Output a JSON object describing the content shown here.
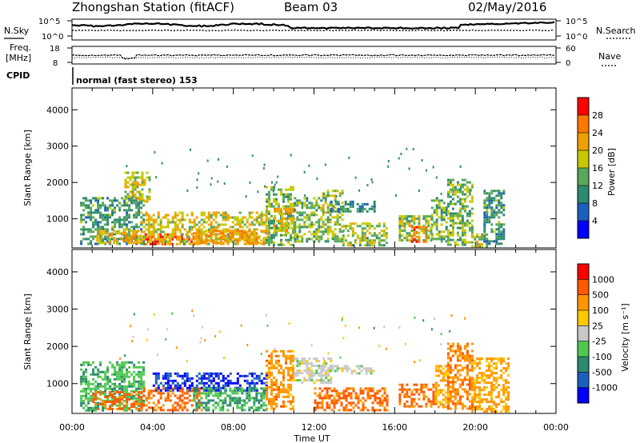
{
  "header": {
    "station": "Zhongshan Station (fitACF)",
    "beam": "Beam 03",
    "date": "02/May/2016",
    "mode": "normal (fast stereo) 153"
  },
  "aux_panels": {
    "nsky_label": "N.Sky",
    "nsky_ticks": [
      "10^5",
      "10^0"
    ],
    "nsearch_label": "N.Search",
    "nsearch_ticks": [
      "10^5",
      "10^0"
    ],
    "freq_label_1": "Freq.",
    "freq_label_2": "[MHz]",
    "freq_ticks": [
      "18",
      "8"
    ],
    "nave_label": "Nave",
    "nave_ticks": [
      "60",
      "0"
    ],
    "cpid_label": "CPID"
  },
  "chart_data": [
    {
      "type": "heatmap",
      "name": "power",
      "ylabel": "Slant Range [km]",
      "xlabel": "Time UT",
      "colorbar_label": "Power [dB]",
      "colorbar_ticks": [
        "28",
        "24",
        "20",
        "16",
        "12",
        "8",
        "4"
      ],
      "colorbar_colors": [
        "#0000ff",
        "#1c5fbf",
        "#2e8a6f",
        "#57a85a",
        "#c8c800",
        "#f0a000",
        "#ff7800",
        "#ff0000"
      ],
      "yticks": [
        "1000",
        "2000",
        "3000",
        "4000"
      ],
      "yrange": [
        200,
        4600
      ],
      "xticks": [
        "00:00",
        "04:00",
        "08:00",
        "12:00",
        "16:00",
        "20:00",
        "00:00"
      ],
      "xrange_hours": [
        0,
        24
      ],
      "regions": [
        {
          "t0": 0.4,
          "t1": 3.6,
          "r0": 300,
          "r1": 1600,
          "level": 0.35
        },
        {
          "t0": 1.2,
          "t1": 3.4,
          "r0": 350,
          "r1": 700,
          "level": 0.7
        },
        {
          "t0": 2.6,
          "t1": 3.8,
          "r0": 1500,
          "r1": 2300,
          "level": 0.55
        },
        {
          "t0": 3.6,
          "t1": 6.0,
          "r0": 300,
          "r1": 600,
          "level": 0.95
        },
        {
          "t0": 3.4,
          "t1": 9.6,
          "r0": 300,
          "r1": 1200,
          "level": 0.6
        },
        {
          "t0": 6.0,
          "t1": 9.8,
          "r0": 350,
          "r1": 700,
          "level": 0.75
        },
        {
          "t0": 9.6,
          "t1": 11.0,
          "r0": 300,
          "r1": 1900,
          "level": 0.45
        },
        {
          "t0": 10.0,
          "t1": 11.0,
          "r0": 700,
          "r1": 1300,
          "level": 0.7
        },
        {
          "t0": 11.0,
          "t1": 12.4,
          "r0": 400,
          "r1": 1600,
          "level": 0.45
        },
        {
          "t0": 12.4,
          "t1": 13.4,
          "r0": 400,
          "r1": 1800,
          "level": 0.5
        },
        {
          "t0": 12.8,
          "t1": 15.0,
          "r0": 1200,
          "r1": 1500,
          "level": 0.3
        },
        {
          "t0": 13.4,
          "t1": 15.6,
          "r0": 300,
          "r1": 900,
          "level": 0.5
        },
        {
          "t0": 16.2,
          "t1": 17.8,
          "r0": 400,
          "r1": 1100,
          "level": 0.5
        },
        {
          "t0": 16.8,
          "t1": 17.6,
          "r0": 400,
          "r1": 800,
          "level": 0.8
        },
        {
          "t0": 17.8,
          "t1": 18.6,
          "r0": 400,
          "r1": 1600,
          "level": 0.45
        },
        {
          "t0": 18.6,
          "t1": 19.8,
          "r0": 300,
          "r1": 2100,
          "level": 0.45
        },
        {
          "t0": 19.8,
          "t1": 20.6,
          "r0": 250,
          "r1": 600,
          "level": 0.55
        },
        {
          "t0": 20.4,
          "t1": 21.4,
          "r0": 300,
          "r1": 1800,
          "level": 0.35
        }
      ]
    },
    {
      "type": "heatmap",
      "name": "velocity",
      "ylabel": "Slant Range [km]",
      "xlabel": "Time UT",
      "colorbar_label": "Velocity [m s⁻¹]",
      "colorbar_ticks": [
        "1000",
        "500",
        "100",
        "25",
        "-25",
        "-100",
        "-500",
        "-1000"
      ],
      "colorbar_colors": [
        "#ff0000",
        "#ff5a00",
        "#ff9600",
        "#ffc800",
        "#c8c8c8",
        "#50c850",
        "#2e8a6f",
        "#1c5fbf",
        "#0000ff"
      ],
      "yticks": [
        "1000",
        "2000",
        "3000",
        "4000"
      ],
      "yrange": [
        200,
        4600
      ],
      "xticks": [
        "00:00",
        "04:00",
        "08:00",
        "12:00",
        "16:00",
        "20:00",
        "00:00"
      ],
      "xrange_hours": [
        0,
        24
      ],
      "regions": [
        {
          "t0": 0.4,
          "t1": 3.6,
          "r0": 300,
          "r1": 1600,
          "level": 0.3
        },
        {
          "t0": 1.0,
          "t1": 3.4,
          "r0": 300,
          "r1": 800,
          "level": -0.7
        },
        {
          "t0": 3.4,
          "t1": 6.4,
          "r0": 300,
          "r1": 900,
          "level": -0.7
        },
        {
          "t0": 4.0,
          "t1": 9.6,
          "r0": 800,
          "r1": 1300,
          "level": 0.9
        },
        {
          "t0": 6.0,
          "t1": 9.6,
          "r0": 300,
          "r1": 900,
          "level": 0.35
        },
        {
          "t0": 9.6,
          "t1": 11.0,
          "r0": 300,
          "r1": 1900,
          "level": -0.5
        },
        {
          "t0": 11.0,
          "t1": 12.8,
          "r0": 1000,
          "r1": 1700,
          "level": 0.0
        },
        {
          "t0": 12.4,
          "t1": 15.0,
          "r0": 1300,
          "r1": 1500,
          "level": 0.0
        },
        {
          "t0": 12.0,
          "t1": 15.6,
          "r0": 300,
          "r1": 900,
          "level": -0.7
        },
        {
          "t0": 16.2,
          "t1": 18.0,
          "r0": 400,
          "r1": 1000,
          "level": -0.7
        },
        {
          "t0": 18.0,
          "t1": 18.6,
          "r0": 400,
          "r1": 1500,
          "level": -0.4
        },
        {
          "t0": 18.6,
          "t1": 19.8,
          "r0": 300,
          "r1": 2100,
          "level": -0.55
        },
        {
          "t0": 19.8,
          "t1": 21.6,
          "r0": 250,
          "r1": 1700,
          "level": -0.45
        }
      ]
    }
  ]
}
